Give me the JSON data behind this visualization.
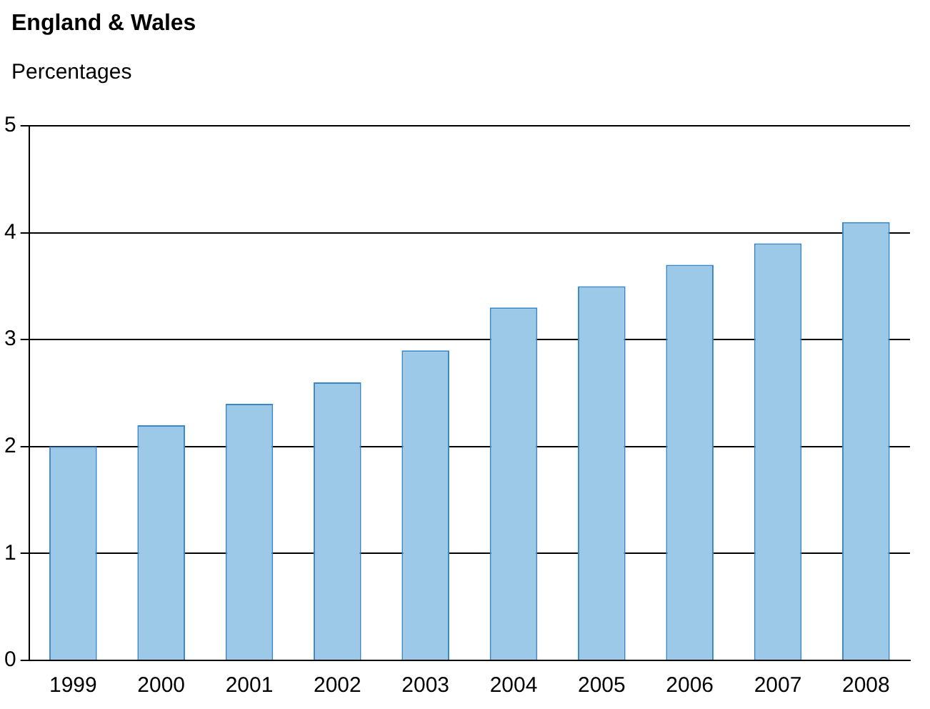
{
  "chart_data": {
    "type": "bar",
    "title": "England & Wales",
    "subtitle": "Percentages",
    "categories": [
      "1999",
      "2000",
      "2001",
      "2002",
      "2003",
      "2004",
      "2005",
      "2006",
      "2007",
      "2008"
    ],
    "values": [
      2.0,
      2.2,
      2.4,
      2.6,
      2.9,
      3.3,
      3.5,
      3.7,
      3.9,
      4.1
    ],
    "color": "#9dc9e8",
    "ylim": [
      0,
      5
    ],
    "yticks": [
      0,
      1,
      2,
      3,
      4,
      5
    ],
    "grid": "y",
    "legend": false
  }
}
